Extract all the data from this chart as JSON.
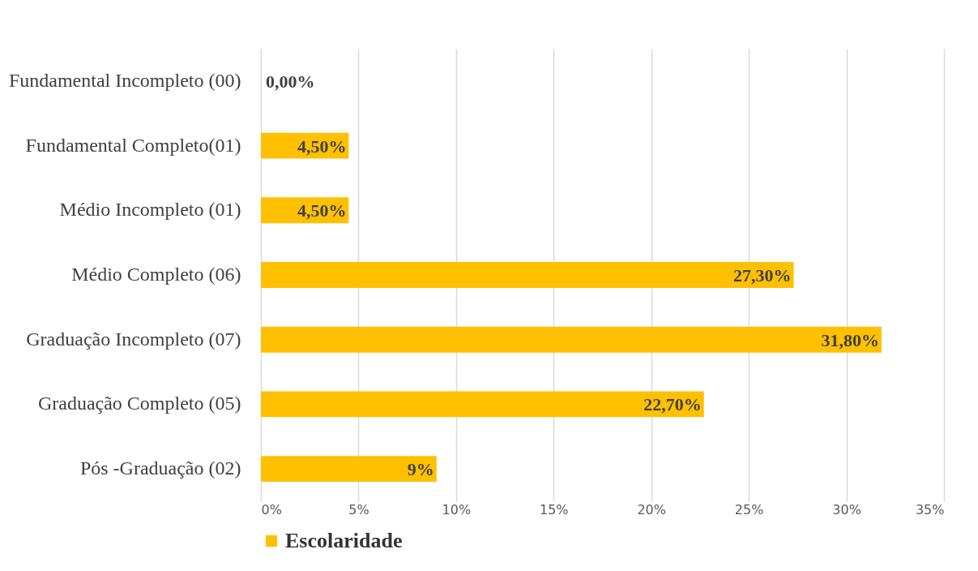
{
  "chart_data": {
    "type": "bar",
    "orientation": "horizontal",
    "categories": [
      "Fundamental Incompleto (00)",
      "Fundamental Completo(01)",
      "Médio Incompleto (01)",
      "Médio Completo (06)",
      "Graduação Incompleto (07)",
      "Graduação Completo (05)",
      "Pós -Graduação (02)"
    ],
    "series": [
      {
        "name": "Escolaridade",
        "color": "#ffc000",
        "values": [
          0,
          4.5,
          4.5,
          27.3,
          31.8,
          22.7,
          9
        ],
        "value_labels": [
          "0,00%",
          "4,50%",
          "4,50%",
          "27,30%",
          "31,80%",
          "22,70%",
          "9%"
        ]
      }
    ],
    "xlim": [
      0,
      35
    ],
    "xticks": [
      {
        "value": 0,
        "label": "0%"
      },
      {
        "value": 5,
        "label": "5%"
      },
      {
        "value": 10,
        "label": "10%"
      },
      {
        "value": 15,
        "label": "15%"
      },
      {
        "value": 20,
        "label": "20%"
      },
      {
        "value": 25,
        "label": "25%"
      },
      {
        "value": 30,
        "label": "30%"
      },
      {
        "value": 35,
        "label": "35%"
      }
    ],
    "grid": "x",
    "legend": "bottom"
  }
}
